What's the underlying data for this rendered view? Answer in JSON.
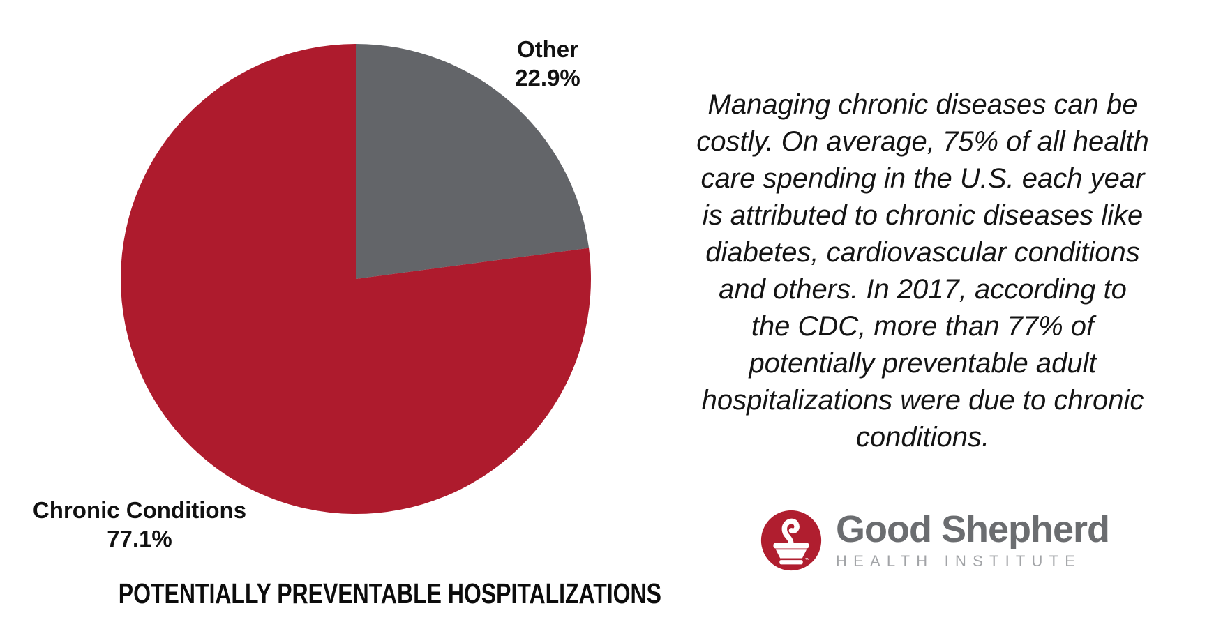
{
  "page": {
    "background": "#FFFFFF"
  },
  "chart_data": {
    "type": "pie",
    "title": "POTENTIALLY PREVENTABLE HOSPITALIZATIONS",
    "start_angle_deg": 0,
    "direction": "clockwise",
    "legend_position": "labels-outside",
    "slices": [
      {
        "label": "Other",
        "value": 22.9,
        "display": "22.9%",
        "color": "#636569"
      },
      {
        "label": "Chronic Conditions",
        "value": 77.1,
        "display": "77.1%",
        "color": "#AE1B2D"
      }
    ]
  },
  "paragraph": {
    "full_text": "Managing chronic diseases can be costly. On average, 75% of all health care spending in the U.S. each year is attributed to chronic diseases like diabetes, cardiovascular conditions and others. In 2017, according to the CDC, more than 77% of potentially preventable adult hospitalizations were due to chronic conditions.",
    "lines": [
      "Managing chronic diseases can be",
      "costly. On average, 75% of all health",
      "care spending in the U.S. each year",
      "is attributed to chronic diseases like",
      "diabetes, cardiovascular conditions",
      "and others. In 2017, according to",
      "the CDC, more than 77% of",
      "potentially preventable adult",
      "hospitalizations were due to chronic",
      "conditions."
    ]
  },
  "logo": {
    "name": "Good Shepherd",
    "subtitle": "HEALTH INSTITUTE",
    "trademark": "™",
    "icon": "mortar-and-pestle-icon",
    "colors": {
      "circle": "#B01E2F",
      "name_text": "#6B6D70",
      "subtitle_text": "#A2A4A7"
    }
  }
}
